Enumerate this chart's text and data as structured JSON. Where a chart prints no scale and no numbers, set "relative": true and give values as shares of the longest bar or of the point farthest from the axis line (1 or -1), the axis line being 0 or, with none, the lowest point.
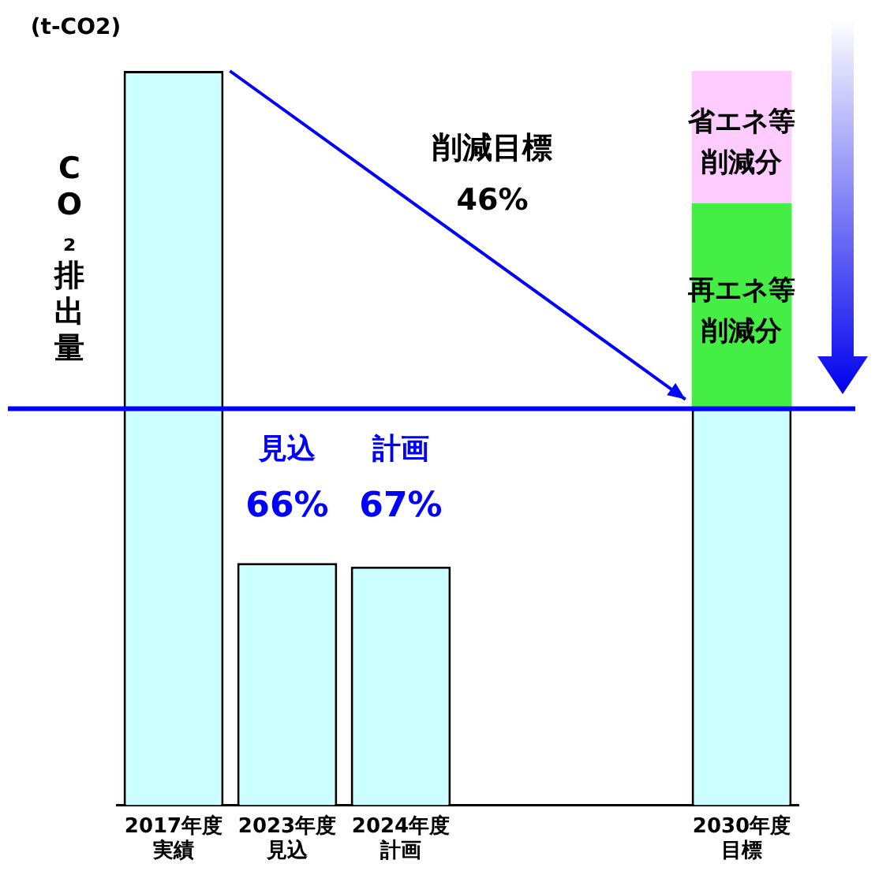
{
  "chart_data": {
    "type": "bar",
    "relative": true,
    "stacked": true,
    "ylabel": "CO₂排出量",
    "categories": [
      "2017年度実績",
      "2023年度見込",
      "2024年度計画",
      null,
      null,
      "2030年度目標"
    ],
    "series": [
      {
        "color": "#ccffff",
        "values": [
          1,
          0.33,
          0.325,
          null,
          null,
          0.54
        ]
      },
      {
        "name": "再エネ等削減分",
        "color": "#44ee44",
        "values": [
          null,
          null,
          null,
          null,
          null,
          0.28
        ]
      },
      {
        "name": "省エネ等削減分",
        "color": "#ffccff",
        "values": [
          null,
          null,
          null,
          null,
          null,
          0.18
        ]
      }
    ],
    "ref_lines": [
      {
        "axis": "y",
        "value": 0.54,
        "color": "#0000ff"
      }
    ],
    "annotations": [
      "(t-CO2)",
      "削減目標\n46%",
      "見込\n66%",
      "計画\n67%"
    ],
    "grid": false,
    "legend": false
  }
}
